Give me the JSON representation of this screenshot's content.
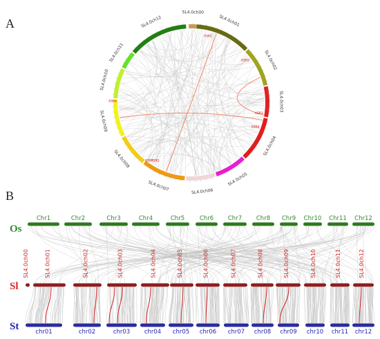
{
  "panel_a": {
    "label": "A",
    "chromosomes": [
      {
        "name": "SL4.0ch00",
        "color": "#c89a55"
      },
      {
        "name": "SL4.0ch01",
        "color": "#676b12"
      },
      {
        "name": "SL4.0ch02",
        "color": "#a0a320"
      },
      {
        "name": "SL4.0ch03",
        "color": "#e02222"
      },
      {
        "name": "SL4.0ch04",
        "color": "#e01e1e"
      },
      {
        "name": "SL4.0ch05",
        "color": "#e61fd0"
      },
      {
        "name": "SL4.0ch06",
        "color": "#f0d6d6"
      },
      {
        "name": "SL4.0ch07",
        "color": "#ee9a14"
      },
      {
        "name": "SL4.0ch08",
        "color": "#f1cd18"
      },
      {
        "name": "SL4.0ch09",
        "color": "#f1f21d"
      },
      {
        "name": "SL4.0ch10",
        "color": "#c0f02e"
      },
      {
        "name": "SL4.0ch11",
        "color": "#66e02a"
      },
      {
        "name": "SL4.0ch12",
        "color": "#237f13"
      }
    ],
    "gene_labels": [
      "ASR1",
      "ASR2",
      "ASR3",
      "ASR4",
      "ASR5",
      "ASR6",
      "ASR7"
    ]
  },
  "panel_b": {
    "label": "B",
    "species": [
      {
        "abbr": "Os",
        "color": "#2e8b2e"
      },
      {
        "abbr": "Sl",
        "color": "#d42424"
      },
      {
        "abbr": "St",
        "color": "#1f1fb0"
      }
    ],
    "os_chromosomes": [
      "Chr1",
      "Chr2",
      "Chr3",
      "Chr4",
      "Chr5",
      "Chr6",
      "Chr7",
      "Chr8",
      "Chr9",
      "Chr10",
      "Chr11",
      "Chr12"
    ],
    "sl_chromosomes": [
      "SL4.0ch00",
      "SL4.0ch01",
      "SL4.0ch02",
      "SL4.0ch03",
      "SL4.0ch04",
      "SL4.0ch05",
      "SL4.0ch06",
      "SL4.0ch07",
      "SL4.0ch08",
      "SL4.0ch09",
      "SL4.0ch10",
      "SL4.0ch11",
      "SL4.0ch12"
    ],
    "st_chromosomes": [
      "chr01",
      "chr02",
      "chr03",
      "chr04",
      "chr05",
      "chr06",
      "chr07",
      "chr08",
      "chr09",
      "chr10",
      "chr11",
      "chr12"
    ]
  }
}
